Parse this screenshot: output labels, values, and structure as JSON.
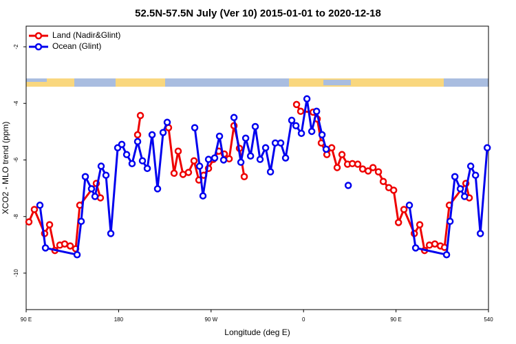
{
  "chart_data": {
    "type": "line",
    "title": "52.5N-57.5N July (Ver 10)   2015-01-01 to 2020-12-18",
    "x_label": "Longitude (deg E)",
    "y_label": "XCO2 - MLO trend (ppm)",
    "xlim": [
      90,
      540
    ],
    "ylim": [
      -11.29,
      -1.27
    ],
    "xticks": [
      {
        "value": 90,
        "label": "90 E"
      },
      180,
      {
        "value": 270,
        "label": "90 W"
      },
      {
        "value": 360,
        "label": "0"
      },
      {
        "value": 450,
        "label": "90 E"
      },
      540
    ],
    "yticks": [
      -2,
      -4,
      -6,
      -8,
      -10
    ],
    "grid": false,
    "legend": "top-left",
    "series": [
      {
        "name": "Land (Nadir&Glint)",
        "color": "#ee0000",
        "x": [
          92.7,
          98.0,
          108,
          112.8,
          118,
          122.8,
          127.5,
          132.9,
          138.2,
          142.2,
          158.3,
          162.3,
          null,
          198.5,
          201.2,
          null,
          228.6,
          234,
          238,
          242.7,
          248,
          253.4,
          258.1,
          262.8,
          267.5,
          272.2,
          277.5,
          282.9,
          287.6,
          292.3,
          297.6,
          302.3,
          null,
          353.2,
          357.2,
          369.3,
          373.3,
          377.3,
          382.7,
          387.4,
          392.7,
          397.4,
          402.8,
          407.5,
          412.8,
          417.5,
          422.9,
          427.6,
          432.9,
          437.6,
          443,
          447.7,
          452.4,
          457.7,
          467.8,
          473.1,
          477.8,
          482.5,
          487.8,
          493.2,
          497.2,
          501.9,
          518,
          521.3
        ],
        "values": [
          -8.19,
          -7.75,
          -8.6,
          -8.29,
          -9.2,
          -9.01,
          -8.97,
          -9.04,
          -9.14,
          -7.6,
          -6.83,
          -7.34,
          null,
          -5.11,
          -4.43,
          null,
          -4.86,
          -6.47,
          -5.69,
          -6.51,
          -6.44,
          -6.03,
          -6.71,
          -6.54,
          -6.3,
          -5.98,
          -5.69,
          -5.79,
          -5.96,
          -4.79,
          -5.59,
          -6.59,
          null,
          -4.04,
          -4.28,
          -4.31,
          -4.55,
          -5.4,
          -5.81,
          -5.57,
          -6.27,
          -5.81,
          -6.15,
          -6.13,
          -6.15,
          -6.32,
          -6.39,
          -6.27,
          -6.42,
          -6.76,
          -6.98,
          -7.07,
          -8.21,
          -7.75,
          -8.6,
          -8.29,
          -9.2,
          -9.01,
          -8.97,
          -9.04,
          -9.09,
          -7.6,
          -6.83,
          -7.34
        ]
      },
      {
        "name": "Ocean (Glint)",
        "color": "#0000ee",
        "x": [
          103.4,
          108.8,
          139.6,
          143.6,
          147.6,
          153.6,
          157,
          163,
          167.7,
          172.4,
          179.1,
          183.1,
          187.8,
          193.1,
          198.5,
          203.2,
          207.9,
          212.6,
          217.9,
          223.3,
          227.3,
          null,
          254.1,
          258.8,
          262.1,
          267.5,
          273.5,
          278.2,
          282.2,
          null,
          292.3,
          299,
          303.7,
          308.4,
          313,
          317.7,
          323.1,
          327.8,
          332.5,
          337.8,
          342.5,
          348.5,
          352.6,
          357.9,
          363.3,
          368,
          372.7,
          378,
          382,
          null,
          403.5,
          null,
          463,
          469.1,
          499.2,
          502.6,
          507.3,
          512.6,
          516.7,
          522.7,
          527.4,
          532.1,
          538.8
        ],
        "values": [
          -7.6,
          -9.11,
          -9.35,
          -8.17,
          -6.59,
          -7.02,
          -7.29,
          -6.22,
          -6.54,
          -8.6,
          -5.57,
          -5.45,
          -5.81,
          -6.13,
          -5.35,
          -6.03,
          -6.3,
          -5.11,
          -7.02,
          -5.03,
          -4.67,
          null,
          -4.86,
          -6.22,
          -7.27,
          -5.98,
          -5.93,
          -5.16,
          -6.0,
          null,
          -4.5,
          -6.08,
          -5.23,
          -5.86,
          -4.82,
          -5.98,
          -5.57,
          -6.42,
          -5.4,
          -5.4,
          -5.93,
          -4.6,
          -4.79,
          -5.06,
          -3.84,
          -4.99,
          -4.28,
          -5.11,
          -5.62,
          null,
          -6.9,
          null,
          -7.6,
          -9.11,
          -9.35,
          -8.17,
          -6.59,
          -7.02,
          -7.29,
          -6.22,
          -6.54,
          -8.6,
          -5.57
        ]
      }
    ]
  }
}
